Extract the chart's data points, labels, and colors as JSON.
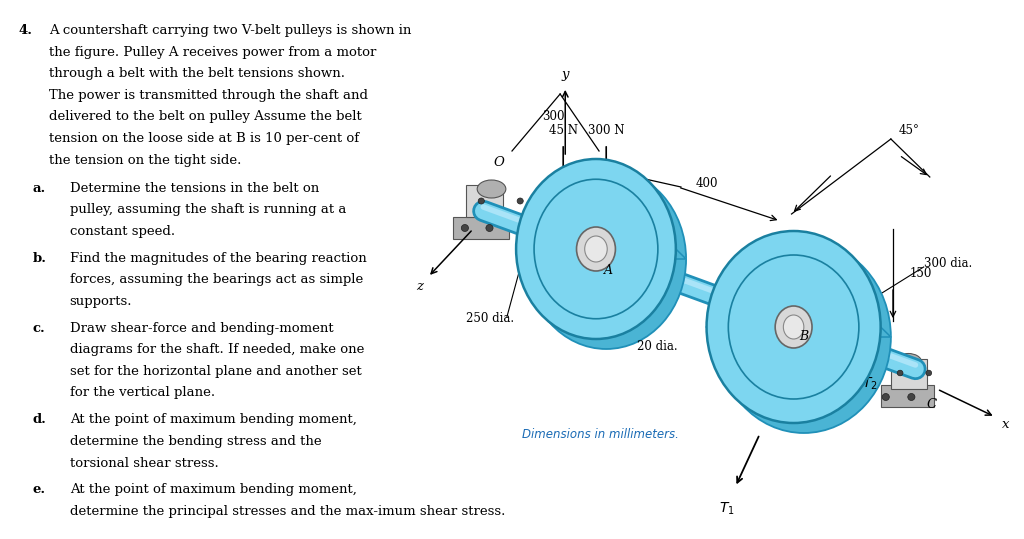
{
  "bg_color": "#ffffff",
  "text_color": "#000000",
  "blue_pulley": "#7dd6f0",
  "blue_pulley_dark": "#4ab4d4",
  "blue_pulley_edge": "#2090b8",
  "shaft_color": "#7dd6f0",
  "shaft_light": "#aae4f8",
  "bearing_light": "#d8d8d8",
  "bearing_mid": "#b0b0b0",
  "bearing_dark": "#888888",
  "dim_color": "#1a6bb5",
  "caption": "Dimensions in millimeters.",
  "problem_number": "4.",
  "para_lines": [
    "A countershaft carrying two V-belt pulleys is shown in",
    "the figure. Pulley A receives power from a motor",
    "through a belt with the belt tensions shown.",
    "The power is transmitted through the shaft and",
    "delivered to the belt on pulley Assume the belt",
    "tension on the loose side at B is 10 per-cent of",
    "the tension on the tight side."
  ],
  "sub_labels": [
    "a.",
    "b.",
    "c.",
    "d.",
    "e."
  ],
  "sub_texts": [
    [
      "Determine the tensions in the belt on",
      "pulley, assuming the shaft is running at a",
      "constant speed."
    ],
    [
      "Find the magnitudes of the bearing reaction",
      "forces, assuming the bearings act as simple",
      "supports."
    ],
    [
      "Draw shear-force and bending-moment",
      "diagrams for the shaft. If needed, make one",
      "set for the horizontal plane and another set",
      "for the vertical plane."
    ],
    [
      "At the point of maximum bending moment,",
      "determine the bending stress and the",
      "torsional shear stress."
    ],
    [
      "At the point of maximum bending moment,",
      "determine the principal stresses and the max-imum shear stress."
    ]
  ]
}
